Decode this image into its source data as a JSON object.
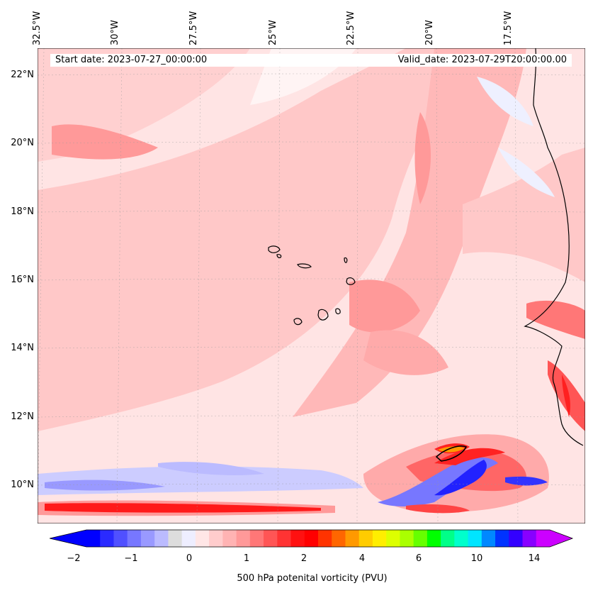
{
  "header": {
    "start_date": "Start date: 2023-07-27_00:00:00",
    "valid_date": "Valid_date: 2023-07-29T20:00:00.00"
  },
  "axes": {
    "lon_labels": [
      "32.5°W",
      "30°W",
      "27.5°W",
      "25°W",
      "22.5°W",
      "20°W",
      "17.5°W"
    ],
    "lat_labels": [
      "22°N",
      "20°N",
      "18°N",
      "16°N",
      "14°N",
      "12°N",
      "10°N"
    ]
  },
  "colorbar": {
    "label": "500 hPa potenital vorticity (PVU)",
    "ticks": [
      "−2",
      "−1",
      "0",
      "1",
      "2",
      "4",
      "6",
      "10",
      "14"
    ],
    "colors": [
      "#0000ff",
      "#2a2aff",
      "#5050ff",
      "#7777ff",
      "#9999ff",
      "#bbbbff",
      "#dddddd",
      "#eeeeff",
      "#ffe6e6",
      "#ffcccc",
      "#ffb3b3",
      "#ff9999",
      "#ff7777",
      "#ff5555",
      "#ff3333",
      "#ff1111",
      "#ff0000",
      "#ff3300",
      "#ff6600",
      "#ff9900",
      "#ffcc00",
      "#ffee00",
      "#ddff00",
      "#aaff00",
      "#66ff00",
      "#00ff00",
      "#00ff88",
      "#00ffcc",
      "#00e5ff",
      "#0088ff",
      "#0033ff",
      "#3300ff",
      "#8800ff",
      "#cc00ff"
    ],
    "colors_note": ""
  },
  "legend_colors": {
    "background_pv": "#ffe4e4",
    "low_pv": "#ffc8c8",
    "mid_pv": "#ff9999",
    "high_pv": "#ff2020",
    "negative_pv": "#9999ff",
    "strong_negative_pv": "#2020ff",
    "peak_pv": "#ff9900"
  }
}
